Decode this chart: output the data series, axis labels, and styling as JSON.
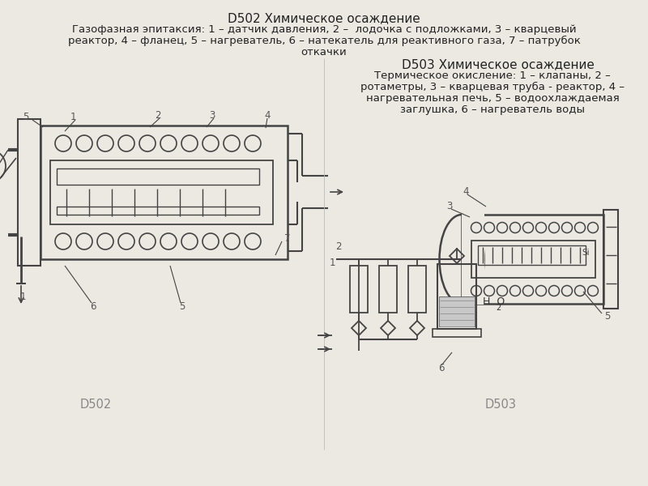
{
  "bg_color": "#ece9e3",
  "line_color": "#444444",
  "title1": "D502 Химическое осаждение",
  "desc1_line1": "Газофазная эпитаксия: 1 – датчик давления, 2 –  лодочка с подложками, 3 – кварцевый",
  "desc1_line2": "реактор, 4 – фланец, 5 – нагреватель, 6 – натекатель для реактивного газа, 7 – патрубок",
  "desc1_line3": "откачки",
  "title2": "D503 Химическое осаждение",
  "desc2_line1": "Термическое окисление: 1 – клапаны, 2 –",
  "desc2_line2": "ротаметры, 3 – кварцевая труба - реактор, 4 –",
  "desc2_line3": "нагревательная печь, 5 – водоохлаждаемая",
  "desc2_line4": "заглушка, 6 – нагреватель воды",
  "label_d502": "D502",
  "label_d503": "D503"
}
